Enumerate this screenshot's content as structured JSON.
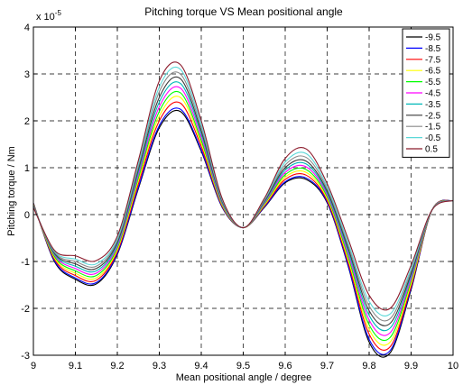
{
  "chart_data": {
    "type": "line",
    "title": "Pitching torque VS Mean positional angle",
    "xlabel": "Mean positional angle / degree",
    "ylabel": "Pitching torque / Nm",
    "y_multiplier_label": "x 10",
    "y_multiplier_exponent": "-5",
    "xlim": [
      9,
      10
    ],
    "ylim": [
      -3,
      4
    ],
    "x_ticks": [
      "9",
      "9.1",
      "9.2",
      "9.3",
      "9.4",
      "9.5",
      "9.6",
      "9.7",
      "9.8",
      "9.9",
      "10"
    ],
    "y_ticks": [
      "-3",
      "-2",
      "-1",
      "0",
      "1",
      "2",
      "3",
      "4"
    ],
    "grid": true,
    "legend_position": "top-right",
    "x": [
      9.0,
      9.05,
      9.1,
      9.15,
      9.2,
      9.25,
      9.3,
      9.35,
      9.4,
      9.45,
      9.5,
      9.55,
      9.6,
      9.65,
      9.7,
      9.75,
      9.8,
      9.85,
      9.9,
      9.95,
      10.0
    ],
    "series": [
      {
        "name": "-9.5",
        "color": "#000000",
        "values": [
          0.25,
          -1.0,
          -1.38,
          -1.48,
          -0.85,
          0.55,
          1.85,
          2.2,
          1.35,
          0.15,
          -0.28,
          0.15,
          0.68,
          0.75,
          0.25,
          -1.1,
          -2.72,
          -2.95,
          -1.6,
          0.1,
          0.3
        ]
      },
      {
        "name": "-8.5",
        "color": "#0000ff",
        "values": [
          0.24,
          -0.98,
          -1.35,
          -1.45,
          -0.83,
          0.58,
          1.9,
          2.25,
          1.38,
          0.16,
          -0.28,
          0.16,
          0.7,
          0.78,
          0.27,
          -1.08,
          -2.66,
          -2.9,
          -1.57,
          0.1,
          0.3
        ]
      },
      {
        "name": "-7.5",
        "color": "#ff0000",
        "values": [
          0.23,
          -0.95,
          -1.3,
          -1.4,
          -0.79,
          0.65,
          2.0,
          2.38,
          1.45,
          0.18,
          -0.28,
          0.18,
          0.75,
          0.84,
          0.3,
          -1.02,
          -2.55,
          -2.82,
          -1.53,
          0.1,
          0.3
        ]
      },
      {
        "name": "-6.5",
        "color": "#ffff00",
        "values": [
          0.22,
          -0.92,
          -1.25,
          -1.35,
          -0.75,
          0.72,
          2.1,
          2.5,
          1.52,
          0.2,
          -0.28,
          0.2,
          0.8,
          0.9,
          0.34,
          -0.96,
          -2.45,
          -2.72,
          -1.48,
          0.1,
          0.3
        ]
      },
      {
        "name": "-5.5",
        "color": "#00ff00",
        "values": [
          0.21,
          -0.89,
          -1.2,
          -1.3,
          -0.71,
          0.78,
          2.2,
          2.6,
          1.58,
          0.22,
          -0.28,
          0.22,
          0.85,
          0.96,
          0.38,
          -0.9,
          -2.35,
          -2.62,
          -1.42,
          0.1,
          0.3
        ]
      },
      {
        "name": "-4.5",
        "color": "#ff00ff",
        "values": [
          0.2,
          -0.86,
          -1.15,
          -1.25,
          -0.67,
          0.84,
          2.3,
          2.7,
          1.65,
          0.24,
          -0.28,
          0.24,
          0.9,
          1.02,
          0.42,
          -0.84,
          -2.25,
          -2.52,
          -1.37,
          0.1,
          0.3
        ]
      },
      {
        "name": "-3.5",
        "color": "#00b8b8",
        "values": [
          0.19,
          -0.84,
          -1.1,
          -1.2,
          -0.63,
          0.9,
          2.4,
          2.8,
          1.72,
          0.26,
          -0.28,
          0.26,
          0.95,
          1.08,
          0.46,
          -0.78,
          -2.15,
          -2.42,
          -1.31,
          0.1,
          0.3
        ]
      },
      {
        "name": "-2.5",
        "color": "#3a3a3a",
        "values": [
          0.18,
          -0.82,
          -1.05,
          -1.15,
          -0.59,
          0.96,
          2.5,
          2.9,
          1.78,
          0.28,
          -0.28,
          0.28,
          1.0,
          1.14,
          0.5,
          -0.72,
          -2.05,
          -2.32,
          -1.26,
          0.1,
          0.3
        ]
      },
      {
        "name": "-1.5",
        "color": "#8a8a8a",
        "values": [
          0.17,
          -0.8,
          -1.0,
          -1.1,
          -0.55,
          1.02,
          2.62,
          3.0,
          1.85,
          0.3,
          -0.28,
          0.3,
          1.06,
          1.22,
          0.55,
          -0.66,
          -1.95,
          -2.22,
          -1.2,
          0.1,
          0.3
        ]
      },
      {
        "name": "-0.5",
        "color": "#5bd8d8",
        "values": [
          0.16,
          -0.78,
          -0.95,
          -1.05,
          -0.51,
          1.08,
          2.72,
          3.1,
          1.92,
          0.32,
          -0.28,
          0.32,
          1.12,
          1.3,
          0.6,
          -0.6,
          -1.85,
          -2.12,
          -1.15,
          0.1,
          0.3
        ]
      },
      {
        "name": "0.5",
        "color": "#8b1a2b",
        "values": [
          0.15,
          -0.76,
          -0.88,
          -0.98,
          -0.46,
          1.15,
          2.85,
          3.2,
          2.0,
          0.34,
          -0.28,
          0.34,
          1.2,
          1.4,
          0.66,
          -0.52,
          -1.72,
          -2.0,
          -1.08,
          0.1,
          0.3
        ]
      }
    ]
  }
}
